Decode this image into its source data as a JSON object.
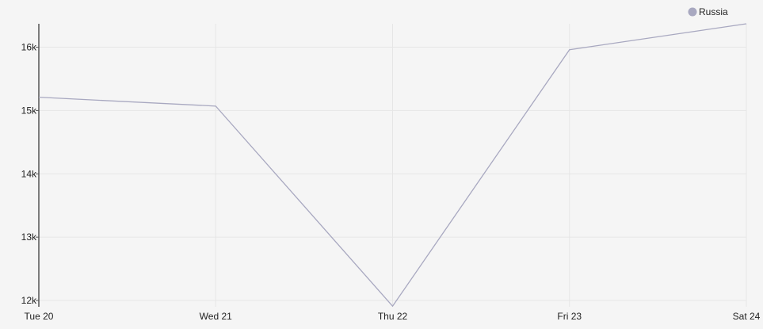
{
  "chart_data": {
    "type": "line",
    "categories": [
      "Tue 20",
      "Wed 21",
      "Thu 22",
      "Fri 23",
      "Sat 24"
    ],
    "series": [
      {
        "name": "Russia",
        "values": [
          15210,
          15070,
          11910,
          15960,
          16370
        ],
        "color": "#a8a8c0"
      }
    ],
    "y_ticks": [
      {
        "value": 12000,
        "label": "12k"
      },
      {
        "value": 13000,
        "label": "13k"
      },
      {
        "value": 14000,
        "label": "14k"
      },
      {
        "value": 15000,
        "label": "15k"
      },
      {
        "value": 16000,
        "label": "16k"
      }
    ],
    "ylim": [
      11900,
      16370
    ],
    "grid": true,
    "legend_position": "top-right",
    "colors": {
      "background": "#f5f5f5",
      "grid": "#e6e6e6",
      "axis": "#555555"
    }
  }
}
